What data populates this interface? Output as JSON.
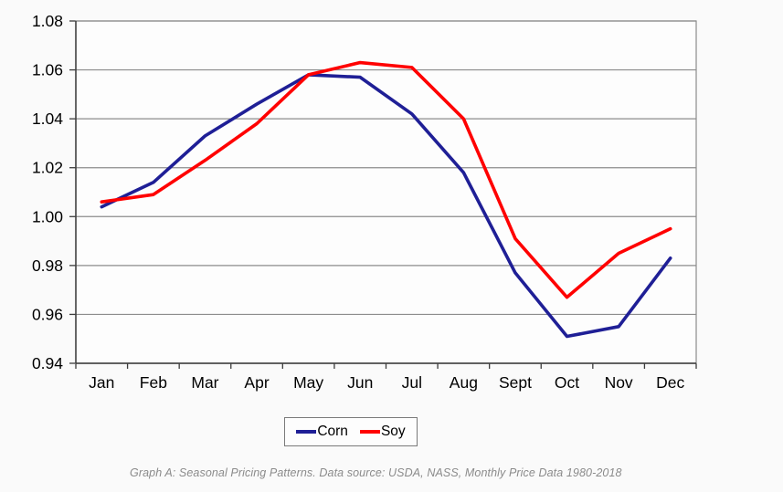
{
  "chart_data": {
    "type": "line",
    "categories": [
      "Jan",
      "Feb",
      "Mar",
      "Apr",
      "May",
      "Jun",
      "Jul",
      "Aug",
      "Sept",
      "Oct",
      "Nov",
      "Dec"
    ],
    "series": [
      {
        "name": "Corn",
        "color": "#1f1f96",
        "values": [
          1.004,
          1.014,
          1.033,
          1.046,
          1.058,
          1.057,
          1.042,
          1.018,
          0.977,
          0.951,
          0.955,
          0.983
        ]
      },
      {
        "name": "Soy",
        "color": "#ff0000",
        "values": [
          1.006,
          1.009,
          1.023,
          1.038,
          1.058,
          1.063,
          1.061,
          1.04,
          0.991,
          0.967,
          0.985,
          0.995
        ]
      }
    ],
    "ylim": [
      0.94,
      1.08
    ],
    "ytick_step": 0.02,
    "y_tick_labels": [
      "1.08",
      "1.06",
      "1.04",
      "1.02",
      "1.00",
      "0.98",
      "0.96",
      "0.94"
    ],
    "grid": "horizontal",
    "legend_position": "bottom",
    "title": "",
    "xlabel": "",
    "ylabel": "",
    "caption": "Graph A: Seasonal Pricing Patterns. Data source: USDA, NASS, Monthly Price Data 1980-2018"
  },
  "colors": {
    "grid": "#8c8c8c",
    "frame": "#8c8c8c",
    "axis": "#3c3c3c",
    "tick": "#3c3c3c",
    "text": "#000000",
    "plot_bg": "#fdfdfd"
  }
}
